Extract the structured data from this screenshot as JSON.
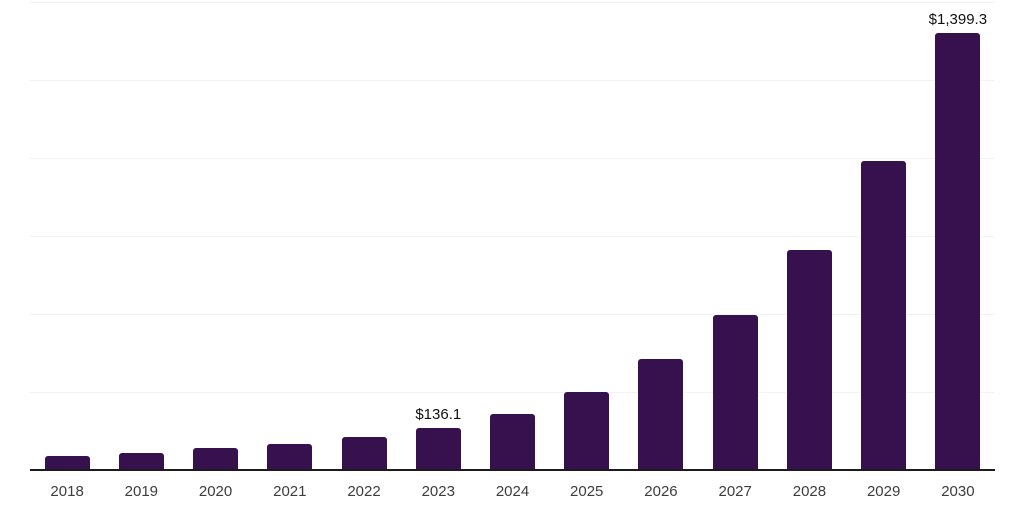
{
  "chart_data": {
    "type": "bar",
    "title": "",
    "xlabel": "",
    "ylabel": "",
    "categories": [
      "2018",
      "2019",
      "2020",
      "2021",
      "2022",
      "2023",
      "2024",
      "2025",
      "2026",
      "2027",
      "2028",
      "2029",
      "2030"
    ],
    "values": [
      45,
      55,
      70,
      83,
      106,
      136.1,
      179,
      250,
      356,
      497,
      705,
      990,
      1399.3
    ],
    "data_labels": [
      "",
      "",
      "",
      "",
      "",
      "$136.1",
      "",
      "",
      "",
      "",
      "",
      "",
      "$1,399.3"
    ],
    "ylim": [
      0,
      1500
    ],
    "gridline_step": 250,
    "grid": "horizontal-only",
    "y_tick_labels_visible": false,
    "legend_position": "none",
    "colors": {
      "bar": "#37114E",
      "axis_line": "#1c1c1c",
      "gridline": "#f2f2f2",
      "tick_label": "#3d3d3d",
      "data_label": "#111111",
      "background": "#ffffff"
    }
  }
}
